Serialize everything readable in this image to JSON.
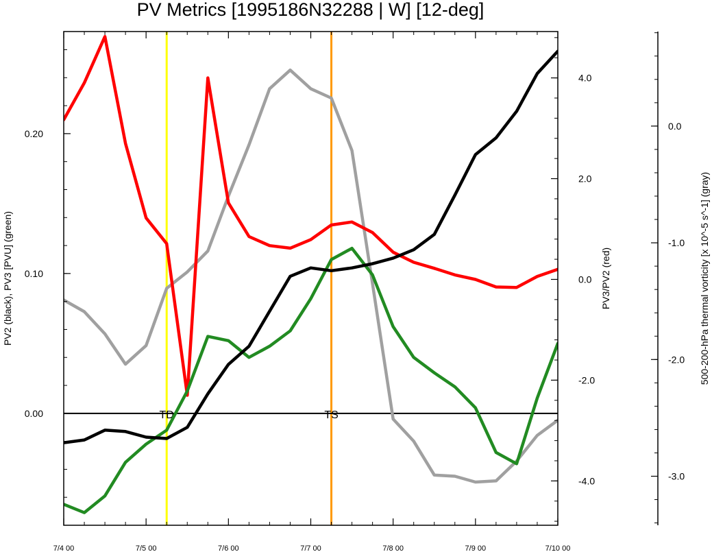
{
  "chart_data": {
    "type": "line",
    "title": "PV Metrics [1995186N32288 | W] [12-deg]",
    "x_tick_labels": [
      "7/4 00",
      "7/5 00",
      "7/6 00",
      "7/7 00",
      "7/8 00",
      "7/9 00",
      "7/10 00"
    ],
    "x_days": [
      0,
      0.25,
      0.5,
      0.75,
      1,
      1.25,
      1.5,
      1.75,
      2,
      2.25,
      2.5,
      2.75,
      3,
      3.25,
      3.5,
      3.75,
      4,
      4.25,
      4.5,
      4.75,
      5,
      5.25,
      5.5,
      5.75,
      6
    ],
    "axes": {
      "left": {
        "label": "PV2 (black), PV3 [PVU] (green)",
        "range": [
          -0.08,
          0.273
        ],
        "ticks": [
          0.1,
          0.2,
          0.0
        ],
        "tick_labels": [
          "0.10",
          "0.20",
          "0.00"
        ]
      },
      "right": {
        "label": "PV3/PV2 (red)",
        "range": [
          -4.88,
          4.92
        ],
        "ticks": [
          4.0,
          2.0,
          0.0,
          -2.0,
          -4.0
        ],
        "tick_labels": [
          "4.0",
          "2.0",
          "0.0",
          "-2.0",
          "-4.0"
        ]
      },
      "far_right": {
        "label": "500-200-hPa thermal vorticity [x 10^-5 s^-1] (gray)",
        "range": [
          -3.42,
          0.81
        ],
        "ticks": [
          0.0,
          -1.0,
          -2.0,
          -3.0
        ],
        "tick_labels": [
          "0.0",
          "-1.0",
          "-2.0",
          "-3.0"
        ]
      }
    },
    "series": [
      {
        "axis": "far_right",
        "color": "#a0a0a0",
        "values": [
          -1.49,
          -1.59,
          -1.78,
          -2.04,
          -1.88,
          -1.39,
          -1.25,
          -1.07,
          -0.6,
          -0.16,
          0.32,
          0.48,
          0.32,
          0.24,
          -0.21,
          -1.35,
          -2.51,
          -2.7,
          -2.99,
          -3.0,
          -3.05,
          -3.04,
          -2.87,
          -2.65,
          -2.52
        ]
      },
      {
        "axis": "right",
        "color": "#ff0000",
        "values": [
          3.17,
          3.9,
          4.82,
          2.7,
          1.22,
          0.71,
          -2.3,
          4.0,
          1.52,
          0.85,
          0.67,
          0.62,
          0.79,
          1.08,
          1.14,
          0.93,
          0.54,
          0.34,
          0.22,
          0.09,
          0.0,
          -0.15,
          -0.16,
          0.06,
          0.2
        ]
      },
      {
        "axis": "left",
        "color": "#228b22",
        "values": [
          -0.065,
          -0.071,
          -0.059,
          -0.035,
          -0.022,
          -0.012,
          0.016,
          0.055,
          0.052,
          0.04,
          0.048,
          0.059,
          0.082,
          0.11,
          0.118,
          0.099,
          0.062,
          0.04,
          0.029,
          0.019,
          0.004,
          -0.028,
          -0.036,
          0.011,
          0.05
        ]
      },
      {
        "axis": "left",
        "color": "#000000",
        "values": [
          -0.021,
          -0.019,
          -0.012,
          -0.013,
          -0.017,
          -0.018,
          -0.01,
          0.014,
          0.035,
          0.048,
          0.073,
          0.098,
          0.104,
          0.102,
          0.104,
          0.107,
          0.111,
          0.117,
          0.128,
          0.156,
          0.185,
          0.197,
          0.216,
          0.243,
          0.259
        ]
      }
    ],
    "zero_line": {
      "axis": "left",
      "value": 0.0
    },
    "events": [
      {
        "label": "TD",
        "x_day": 1.25,
        "color": "#ffff00"
      },
      {
        "label": "TS",
        "x_day": 3.25,
        "color": "#ff9900"
      }
    ]
  }
}
